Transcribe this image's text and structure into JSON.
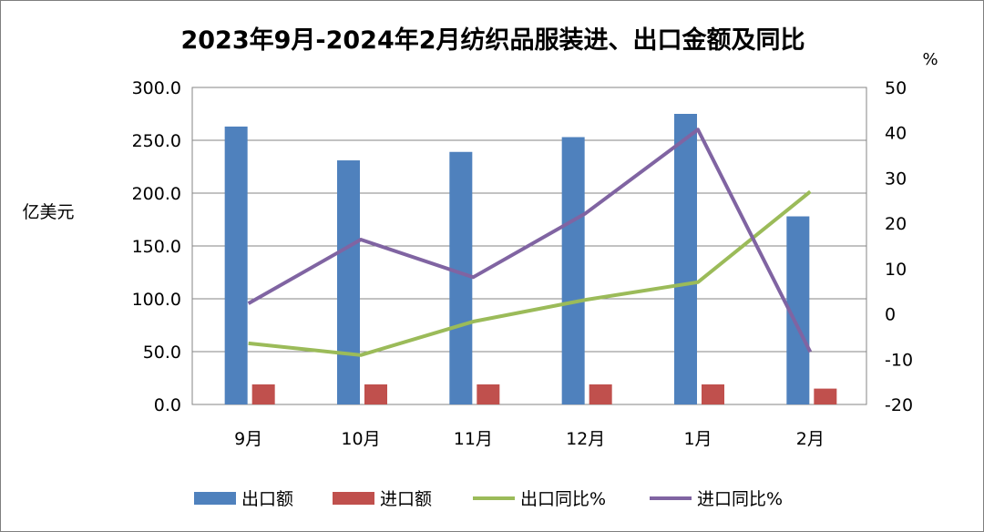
{
  "chart_data": {
    "type": "bar+line",
    "title": "2023年9月-2024年2月纺织品服装进、出口金额及同比",
    "ylabel": "亿美元",
    "y2label": "%",
    "ylim": [
      0,
      300
    ],
    "y2lim": [
      -20,
      50
    ],
    "yticks": [
      "0.0",
      "50.0",
      "100.0",
      "150.0",
      "200.0",
      "250.0",
      "300.0"
    ],
    "y2ticks": [
      "-20",
      "-10",
      "0",
      "10",
      "20",
      "30",
      "40",
      "50"
    ],
    "grid": true,
    "legend": "bottom",
    "categories": [
      "9月",
      "10月",
      "11月",
      "12月",
      "1月",
      "2月"
    ],
    "series": [
      {
        "name": "出口额",
        "type": "bar",
        "axis": "left",
        "color": "#4F81BD",
        "values": [
          263,
          231,
          239,
          253,
          275,
          178
        ]
      },
      {
        "name": "进口额",
        "type": "bar",
        "axis": "left",
        "color": "#C0504D",
        "values": [
          19,
          19,
          19,
          19,
          19,
          15
        ]
      },
      {
        "name": "出口同比%",
        "type": "line",
        "axis": "right",
        "color": "#9BBB59",
        "values": [
          -6.5,
          -9.1,
          -1.7,
          3.1,
          7.0,
          27.0
        ]
      },
      {
        "name": "进口同比%",
        "type": "line",
        "axis": "right",
        "color": "#8064A2",
        "values": [
          2.3,
          16.4,
          8.1,
          22.2,
          40.7,
          -8.4
        ]
      }
    ]
  }
}
